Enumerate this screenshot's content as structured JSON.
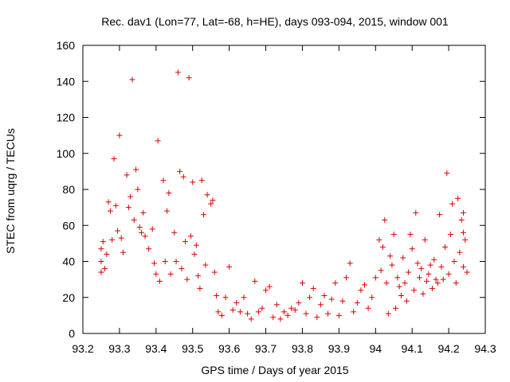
{
  "chart_data": {
    "type": "scatter",
    "title": "Rec. dav1 (Lon=77, Lat=-68, h=HE), days 093-094, 2015, window 001",
    "xlabel": "GPS time / Days of year 2015",
    "ylabel": "STEC from uqrg / TECUs",
    "xlim": [
      93.2,
      94.3
    ],
    "ylim": [
      0,
      160
    ],
    "x_ticks": [
      "93.2",
      "93.3",
      "93.4",
      "93.5",
      "93.6",
      "93.7",
      "93.8",
      "93.9",
      "94",
      "94.1",
      "94.2",
      "94.3"
    ],
    "y_ticks": [
      "0",
      "20",
      "40",
      "60",
      "80",
      "100",
      "120",
      "140",
      "160"
    ],
    "grid": false,
    "legend": "none",
    "marker": "plus",
    "color": "#dd0000",
    "series": [
      {
        "points": [
          [
            93.25,
            34
          ],
          [
            93.25,
            40
          ],
          [
            93.25,
            47
          ],
          [
            93.255,
            51
          ],
          [
            93.26,
            36
          ],
          [
            93.265,
            44
          ],
          [
            93.27,
            73
          ],
          [
            93.275,
            68
          ],
          [
            93.28,
            52
          ],
          [
            93.285,
            97
          ],
          [
            93.29,
            71
          ],
          [
            93.295,
            57
          ],
          [
            93.3,
            110
          ],
          [
            93.305,
            53
          ],
          [
            93.31,
            45
          ],
          [
            93.32,
            88
          ],
          [
            93.325,
            70
          ],
          [
            93.33,
            76
          ],
          [
            93.335,
            141
          ],
          [
            93.34,
            63
          ],
          [
            93.345,
            91
          ],
          [
            93.35,
            80
          ],
          [
            93.355,
            59
          ],
          [
            93.36,
            56
          ],
          [
            93.365,
            67
          ],
          [
            93.37,
            54
          ],
          [
            93.38,
            47
          ],
          [
            93.39,
            58
          ],
          [
            93.395,
            39
          ],
          [
            93.4,
            33
          ],
          [
            93.405,
            107
          ],
          [
            93.41,
            29
          ],
          [
            93.42,
            85
          ],
          [
            93.425,
            40
          ],
          [
            93.43,
            68
          ],
          [
            93.435,
            78
          ],
          [
            93.44,
            33
          ],
          [
            93.45,
            56
          ],
          [
            93.455,
            40
          ],
          [
            93.46,
            145
          ],
          [
            93.465,
            90
          ],
          [
            93.47,
            36
          ],
          [
            93.475,
            87
          ],
          [
            93.48,
            51
          ],
          [
            93.485,
            30
          ],
          [
            93.49,
            142
          ],
          [
            93.495,
            54
          ],
          [
            93.5,
            84
          ],
          [
            93.505,
            44
          ],
          [
            93.51,
            49
          ],
          [
            93.515,
            32
          ],
          [
            93.52,
            25
          ],
          [
            93.525,
            85
          ],
          [
            93.53,
            66
          ],
          [
            93.535,
            38
          ],
          [
            93.54,
            77
          ],
          [
            93.55,
            72
          ],
          [
            93.555,
            74
          ],
          [
            93.56,
            34
          ],
          [
            93.565,
            21
          ],
          [
            93.57,
            12
          ],
          [
            93.58,
            10
          ],
          [
            93.59,
            20
          ],
          [
            93.6,
            37
          ],
          [
            93.61,
            13
          ],
          [
            93.62,
            17
          ],
          [
            93.63,
            12
          ],
          [
            93.64,
            20
          ],
          [
            93.65,
            11
          ],
          [
            93.66,
            8
          ],
          [
            93.67,
            29
          ],
          [
            93.68,
            12
          ],
          [
            93.69,
            14
          ],
          [
            93.7,
            24
          ],
          [
            93.71,
            26
          ],
          [
            93.72,
            9
          ],
          [
            93.73,
            16
          ],
          [
            93.74,
            8
          ],
          [
            93.75,
            12
          ],
          [
            93.76,
            10
          ],
          [
            93.77,
            14
          ],
          [
            93.78,
            13
          ],
          [
            93.79,
            17
          ],
          [
            93.8,
            28
          ],
          [
            93.81,
            11
          ],
          [
            93.82,
            20
          ],
          [
            93.83,
            25
          ],
          [
            93.84,
            9
          ],
          [
            93.85,
            16
          ],
          [
            93.86,
            21
          ],
          [
            93.87,
            11
          ],
          [
            93.88,
            19
          ],
          [
            93.89,
            28
          ],
          [
            93.9,
            10
          ],
          [
            93.91,
            18
          ],
          [
            93.92,
            31
          ],
          [
            93.93,
            39
          ],
          [
            93.94,
            12
          ],
          [
            93.95,
            17
          ],
          [
            93.96,
            24
          ],
          [
            93.97,
            27
          ],
          [
            93.98,
            14
          ],
          [
            93.99,
            20
          ],
          [
            94.0,
            31
          ],
          [
            94.01,
            52
          ],
          [
            94.015,
            35
          ],
          [
            94.02,
            48
          ],
          [
            94.025,
            63
          ],
          [
            94.03,
            28
          ],
          [
            94.035,
            11
          ],
          [
            94.04,
            43
          ],
          [
            94.045,
            38
          ],
          [
            94.05,
            55
          ],
          [
            94.055,
            14
          ],
          [
            94.06,
            31
          ],
          [
            94.065,
            26
          ],
          [
            94.07,
            21
          ],
          [
            94.075,
            42
          ],
          [
            94.08,
            28
          ],
          [
            94.085,
            18
          ],
          [
            94.09,
            34
          ],
          [
            94.095,
            55
          ],
          [
            94.1,
            47
          ],
          [
            94.105,
            24
          ],
          [
            94.11,
            67
          ],
          [
            94.115,
            39
          ],
          [
            94.12,
            31
          ],
          [
            94.125,
            36
          ],
          [
            94.13,
            22
          ],
          [
            94.135,
            52
          ],
          [
            94.14,
            29
          ],
          [
            94.145,
            33
          ],
          [
            94.15,
            38
          ],
          [
            94.155,
            25
          ],
          [
            94.16,
            41
          ],
          [
            94.165,
            30
          ],
          [
            94.17,
            28
          ],
          [
            94.175,
            66
          ],
          [
            94.18,
            37
          ],
          [
            94.185,
            30
          ],
          [
            94.19,
            48
          ],
          [
            94.195,
            89
          ],
          [
            94.2,
            33
          ],
          [
            94.205,
            55
          ],
          [
            94.21,
            72
          ],
          [
            94.215,
            40
          ],
          [
            94.22,
            28
          ],
          [
            94.225,
            75
          ],
          [
            94.23,
            45
          ],
          [
            94.235,
            63
          ],
          [
            94.24,
            67
          ],
          [
            94.24,
            56
          ],
          [
            94.24,
            37
          ],
          [
            94.245,
            52
          ],
          [
            94.25,
            34
          ]
        ]
      }
    ]
  }
}
